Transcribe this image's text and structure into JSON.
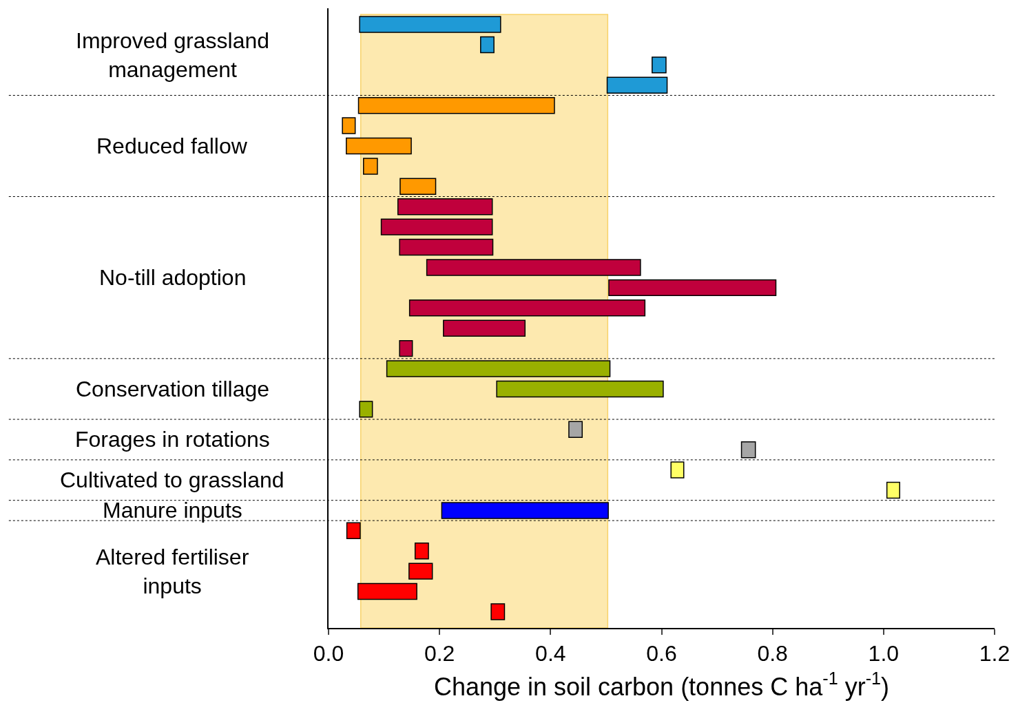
{
  "chart_data": {
    "type": "bar",
    "orientation": "horizontal",
    "xlabel": "Change in soil carbon (tonnes C ha$^{-1}$ yr$^{-1}$)",
    "categories": [
      null,
      null,
      null,
      null,
      null,
      null,
      null,
      null,
      null,
      null,
      null,
      null,
      null,
      null,
      null,
      null,
      null,
      null,
      null,
      null,
      null,
      null,
      null,
      null,
      null,
      null,
      null,
      null,
      null,
      null
    ],
    "base": [
      0.056,
      0.274,
      0.583,
      0.502,
      0.054,
      0.025,
      0.032,
      0.063,
      0.129,
      0.125,
      0.095,
      0.128,
      0.177,
      0.505,
      0.146,
      0.207,
      0.128,
      0.105,
      0.303,
      0.056,
      0.433,
      0.744,
      0.617,
      1.006,
      0.204,
      0.033,
      0.156,
      0.145,
      0.053,
      0.293
    ],
    "values": [
      0.254,
      0.024,
      0.025,
      0.108,
      0.353,
      0.023,
      0.117,
      0.025,
      0.064,
      0.17,
      0.2,
      0.168,
      0.385,
      0.301,
      0.424,
      0.147,
      0.023,
      0.402,
      0.3,
      0.023,
      0.024,
      0.025,
      0.023,
      0.023,
      0.3,
      0.024,
      0.024,
      0.042,
      0.106,
      0.024
    ],
    "colors": [
      "#1f9ad6",
      "#1f9ad6",
      "#1f9ad6",
      "#1f9ad6",
      "#ff9900",
      "#ff9900",
      "#ff9900",
      "#ff9900",
      "#ff9900",
      "#c0003c",
      "#c0003c",
      "#c0003c",
      "#c0003c",
      "#c0003c",
      "#c0003c",
      "#c0003c",
      "#c0003c",
      "#99b000",
      "#99b000",
      "#99b000",
      "#a6a6a6",
      "#a6a6a6",
      "#ffff66",
      "#ffff66",
      "#0000ff",
      "#ff0000",
      "#ff0000",
      "#ff0000",
      "#ff0000",
      "#ff0000"
    ],
    "annotations": [
      "Improved grassland management",
      "Reduced fallow",
      "No-till adoption",
      "Conservation tillage",
      "Forages in rotations",
      "Cultivated to grassland",
      "Manure inputs",
      "Altered fertiliser inputs"
    ],
    "bands": [
      {
        "axis": "x",
        "from": 0.058,
        "to": 0.503,
        "color": "#fde9af"
      }
    ],
    "xlim": [
      0,
      1.2
    ],
    "xticks": [
      {
        "value": 0,
        "label": "0.0"
      },
      0.2,
      0.4,
      0.6,
      0.8,
      {
        "value": 1,
        "label": "1.0"
      },
      1.2
    ],
    "tick_labels": "x",
    "grid": false,
    "legend": false
  }
}
